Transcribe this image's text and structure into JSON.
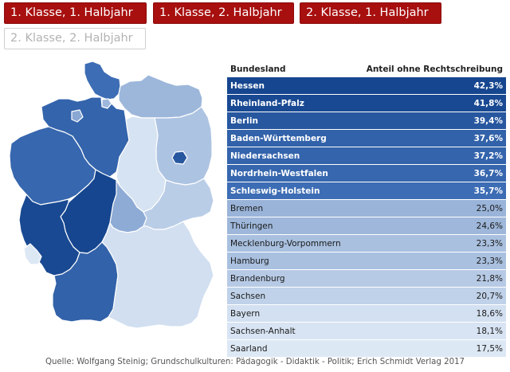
{
  "tabs": [
    {
      "label": "1. Klasse, 1. Halbjahr",
      "active": true
    },
    {
      "label": "1. Klasse, 2. Halbjahr",
      "active": true
    },
    {
      "label": "2. Klasse, 1. Halbjahr",
      "active": true
    },
    {
      "label": "2. Klasse, 2. Halbjahr",
      "active": false
    }
  ],
  "table": {
    "header_state": "Bundesland",
    "header_value": "Anteil ohne Rechtschreibung"
  },
  "chart_data": {
    "type": "table",
    "title": "Anteil ohne Rechtschreibung",
    "columns": [
      "Bundesland",
      "Anteil ohne Rechtschreibung"
    ],
    "rows": [
      {
        "state": "Hessen",
        "value": 42.3,
        "label": "42,3%",
        "tier": "high"
      },
      {
        "state": "Rheinland-Pfalz",
        "value": 41.8,
        "label": "41,8%",
        "tier": "high"
      },
      {
        "state": "Berlin",
        "value": 39.4,
        "label": "39,4%",
        "tier": "high"
      },
      {
        "state": "Baden-Württemberg",
        "value": 37.6,
        "label": "37,6%",
        "tier": "high"
      },
      {
        "state": "Niedersachsen",
        "value": 37.2,
        "label": "37,2%",
        "tier": "high"
      },
      {
        "state": "Nordrhein-Westfalen",
        "value": 36.7,
        "label": "36,7%",
        "tier": "high"
      },
      {
        "state": "Schleswig-Holstein",
        "value": 35.7,
        "label": "35,7%",
        "tier": "high"
      },
      {
        "state": "Bremen",
        "value": 25.0,
        "label": "25,0%",
        "tier": "low"
      },
      {
        "state": "Thüringen",
        "value": 24.6,
        "label": "24,6%",
        "tier": "low"
      },
      {
        "state": "Mecklenburg-Vorpommern",
        "value": 23.3,
        "label": "23,3%",
        "tier": "low"
      },
      {
        "state": "Hamburg",
        "value": 23.3,
        "label": "23,3%",
        "tier": "low"
      },
      {
        "state": "Brandenburg",
        "value": 21.8,
        "label": "21,8%",
        "tier": "low"
      },
      {
        "state": "Sachsen",
        "value": 20.7,
        "label": "20,7%",
        "tier": "low"
      },
      {
        "state": "Bayern",
        "value": 18.6,
        "label": "18,6%",
        "tier": "low"
      },
      {
        "state": "Sachsen-Anhalt",
        "value": 18.1,
        "label": "18,1%",
        "tier": "low"
      },
      {
        "state": "Saarland",
        "value": 17.5,
        "label": "17,5%",
        "tier": "low"
      }
    ],
    "color_range": {
      "min": 17.5,
      "max": 42.3,
      "low_color": "#e0e9f5",
      "high_color": "#16468f"
    }
  },
  "source": "Quelle: Wolfgang Steinig; Grundschulkulturen: Pädagogik - Didaktik - Politik; Erich Schmidt Verlag 2017",
  "colors": {
    "tab_active": "#a80f0f",
    "tab_inactive_text": "#b3b3b3",
    "map_stroke": "#ffffff"
  }
}
